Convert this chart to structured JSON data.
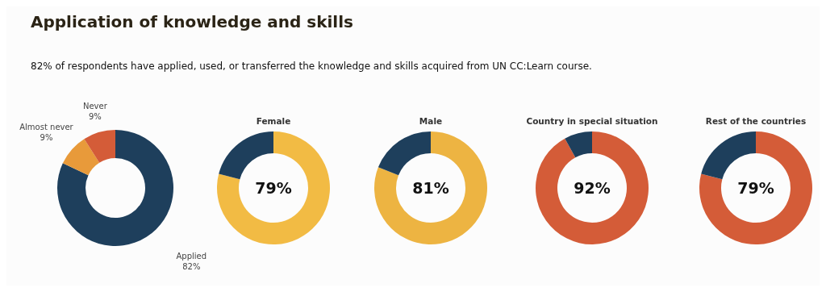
{
  "chart_data": [
    {
      "type": "donut",
      "title": "Application of knowledge and skills",
      "subtitle": "82% of respondents have applied, used, or transferred the  knowledge and skills acquired from UN CC:Learn course.",
      "categories": [
        "Applied",
        "Almost never",
        "Never"
      ],
      "values": [
        82,
        9,
        9
      ],
      "colors": [
        "#1e3f5c",
        "#e89a3a",
        "#d45c38"
      ],
      "value_labels": [
        "82%",
        "9%",
        "9%"
      ]
    },
    {
      "type": "donut",
      "title": "Female",
      "categories": [
        null,
        null
      ],
      "values": [
        79,
        21
      ],
      "colors": [
        "#f2bb44",
        "#1e3f5c"
      ],
      "value_labels": [
        "79%",
        null
      ]
    },
    {
      "type": "donut",
      "title": "Male",
      "categories": [
        null,
        null
      ],
      "values": [
        81,
        19
      ],
      "colors": [
        "#edb442",
        "#1e3f5c"
      ],
      "value_labels": [
        "81%",
        null
      ]
    },
    {
      "type": "donut",
      "title": "Country in special situation",
      "categories": [
        null,
        null
      ],
      "values": [
        92,
        8
      ],
      "colors": [
        "#d45c38",
        "#1e3f5c"
      ],
      "value_labels": [
        "92%",
        null
      ]
    },
    {
      "type": "donut",
      "title": "Rest of the countries",
      "categories": [
        null,
        null
      ],
      "values": [
        79,
        21
      ],
      "colors": [
        "#d45c38",
        "#1e3f5c"
      ],
      "value_labels": [
        "79%",
        null
      ]
    }
  ]
}
